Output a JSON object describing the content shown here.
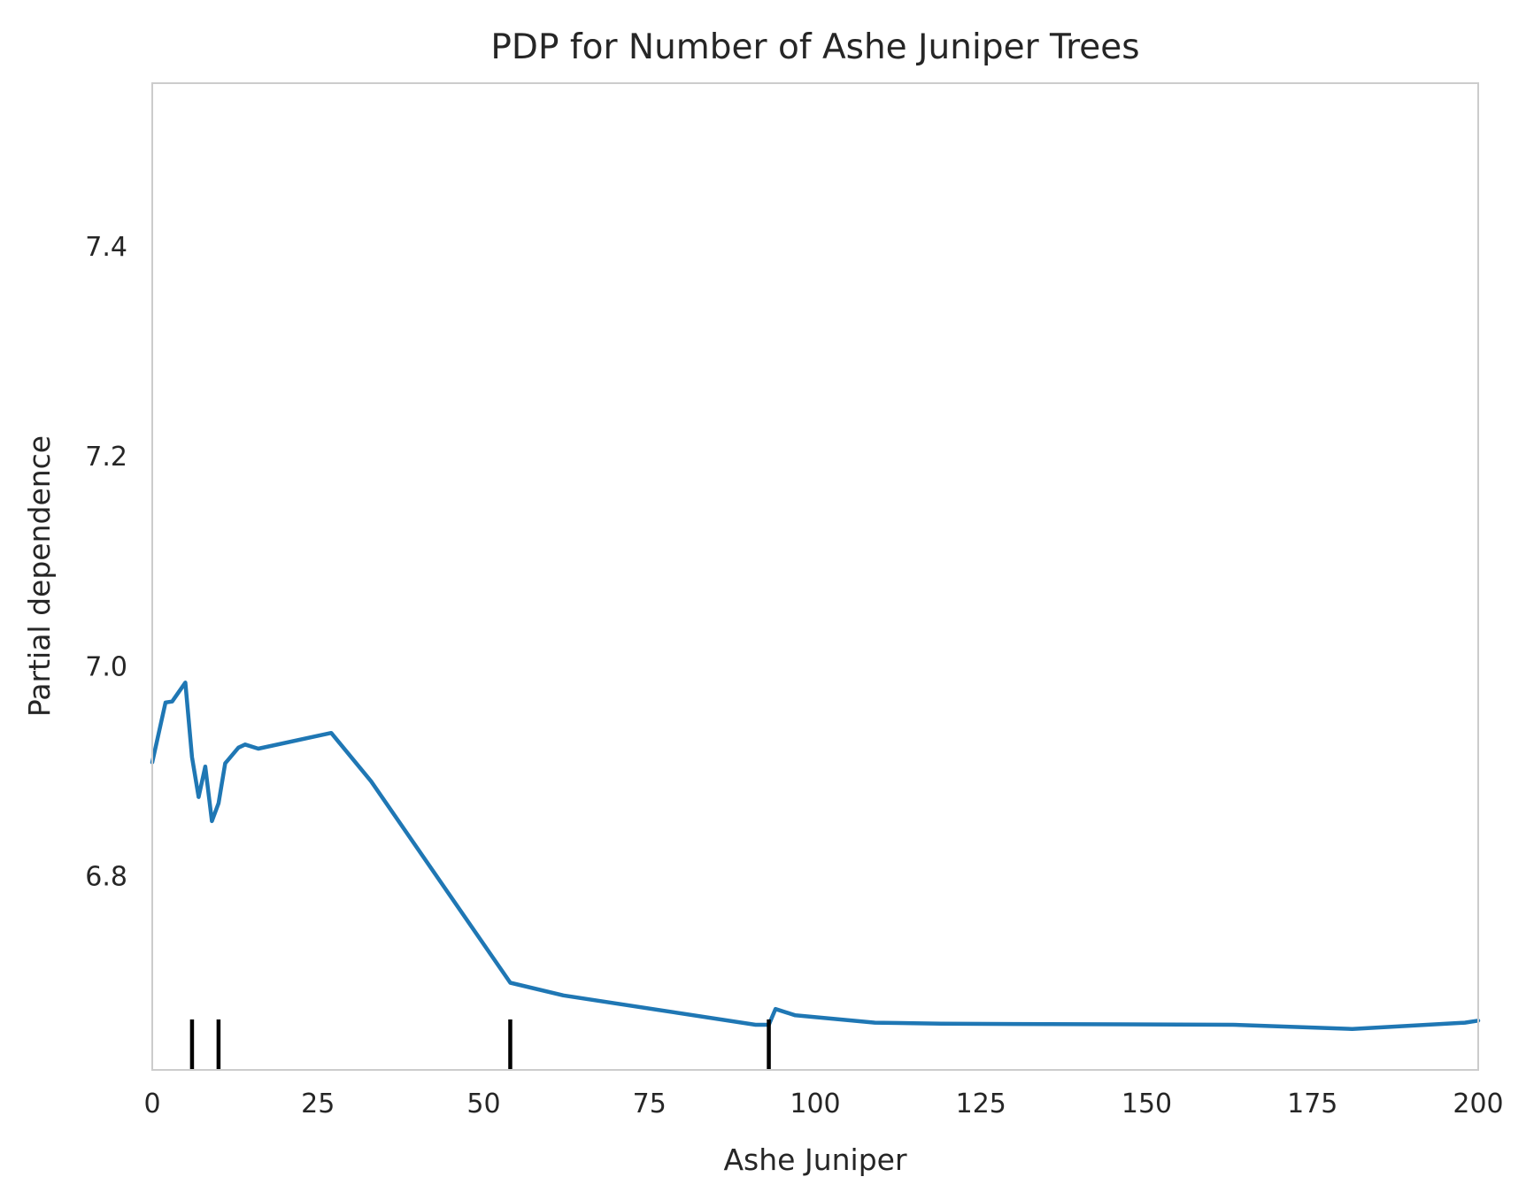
{
  "chart_data": {
    "type": "line",
    "title": "PDP for Number of Ashe Juniper Trees",
    "xlabel": "Ashe Juniper",
    "ylabel": "Partial dependence",
    "xlim": [
      0,
      200
    ],
    "ylim": [
      6.615,
      7.555
    ],
    "x_ticks": [
      0,
      25,
      50,
      75,
      100,
      125,
      150,
      175,
      200
    ],
    "x_tick_labels": [
      "0",
      "25",
      "50",
      "75",
      "100",
      "125",
      "150",
      "175",
      "200"
    ],
    "y_ticks": [
      6.8,
      7.0,
      7.2,
      7.4
    ],
    "y_tick_labels": [
      "6.8",
      "7.0",
      "7.2",
      "7.4"
    ],
    "grid": false,
    "series": [
      {
        "color": "#1f77b4",
        "x": [
          0,
          2,
          3,
          5,
          6,
          7,
          8,
          9,
          10,
          11,
          13,
          14,
          16,
          27,
          33,
          54,
          62,
          91,
          93,
          94,
          97,
          109,
          119,
          163,
          181,
          198,
          200
        ],
        "y": [
          6.908,
          6.965,
          6.966,
          6.984,
          6.913,
          6.875,
          6.904,
          6.852,
          6.869,
          6.907,
          6.922,
          6.925,
          6.921,
          6.936,
          6.89,
          6.698,
          6.686,
          6.658,
          6.658,
          6.673,
          6.667,
          6.66,
          6.659,
          6.658,
          6.654,
          6.66,
          6.662
        ]
      }
    ],
    "rug": {
      "color": "#000000",
      "x": [
        6,
        10,
        54,
        93
      ]
    }
  }
}
